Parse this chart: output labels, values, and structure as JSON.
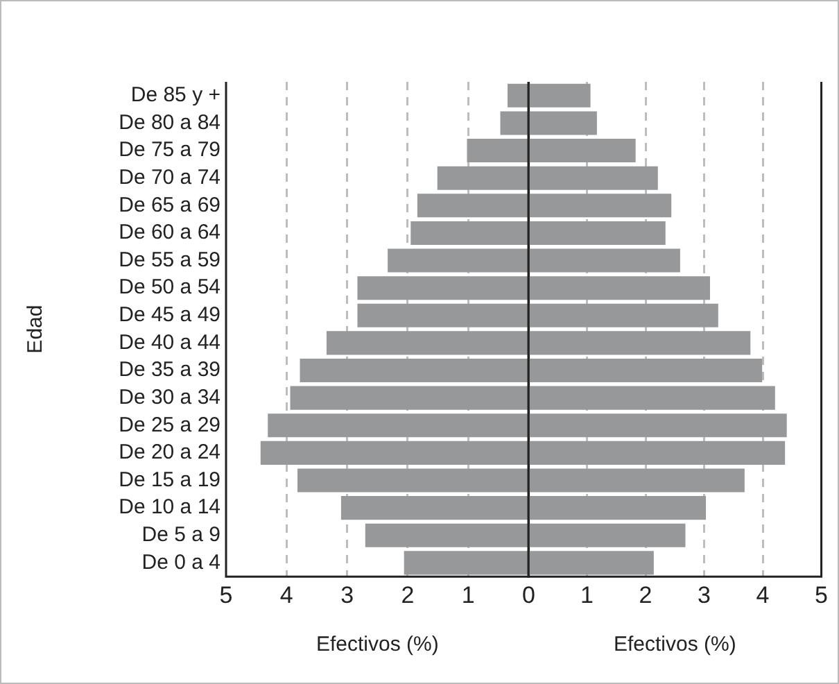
{
  "chart_data": [
    {
      "type": "bar",
      "orientation": "horizontal",
      "ylabel": "Edad",
      "xlabel": "Efectivos (%)",
      "categories": [
        "De 85 y +",
        "De 80 a 84",
        "De 75 a 79",
        "De 70 a 74",
        "De 65 a 69",
        "De 60 a 64",
        "De 55 a 59",
        "De 50 a 54",
        "De 45 a 49",
        "De 40 a 44",
        "De 35 a 39",
        "De 30 a 34",
        "De 25 a 29",
        "De 20 a 24",
        "De 15 a 19",
        "De 10 a 14",
        "De 5 a 9",
        "De 0 a 4"
      ],
      "values": [
        0.35,
        0.47,
        1.02,
        1.51,
        1.84,
        1.95,
        2.33,
        2.83,
        2.83,
        3.34,
        3.78,
        3.94,
        4.31,
        4.43,
        3.82,
        3.1,
        2.7,
        2.06
      ],
      "color": "#97989a",
      "xlim": [
        5,
        0
      ],
      "xticks": [
        5,
        4,
        3,
        2,
        1,
        0
      ],
      "grid": "x"
    },
    {
      "type": "bar",
      "orientation": "horizontal",
      "xlabel": "Efectivos (%)",
      "values": [
        1.06,
        1.17,
        1.83,
        2.21,
        2.44,
        2.34,
        2.59,
        3.1,
        3.24,
        3.79,
        3.99,
        4.21,
        4.41,
        4.38,
        3.69,
        3.03,
        2.68,
        2.14
      ],
      "color": "#97989a",
      "xlim": [
        0,
        5
      ],
      "xticks": [
        {
          "value": 0,
          "label": null
        },
        1,
        2,
        3,
        4,
        5
      ],
      "grid": "x",
      "tick_labels": "x"
    }
  ]
}
